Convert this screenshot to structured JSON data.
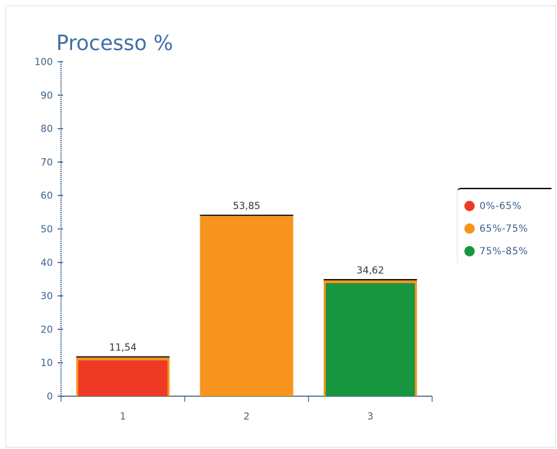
{
  "chart_data": {
    "type": "bar",
    "title": "Processo %",
    "categories": [
      "1",
      "2",
      "3"
    ],
    "values": [
      11.54,
      53.85,
      34.62
    ],
    "value_labels": [
      "11,54",
      "53,85",
      "34,62"
    ],
    "bar_colors": [
      "#ee3a24",
      "#f7941d",
      "#17963f"
    ],
    "ylim": [
      0,
      100
    ],
    "yticks": [
      "0",
      "10",
      "20",
      "30",
      "40",
      "50",
      "60",
      "70",
      "80",
      "90",
      "100"
    ],
    "grid": false,
    "legend_position": "right",
    "legend": [
      {
        "label": "0%-65%",
        "color": "#ee3a24"
      },
      {
        "label": "65%-75%",
        "color": "#f7941d"
      },
      {
        "label": "75%-85%",
        "color": "#17963f"
      }
    ]
  }
}
